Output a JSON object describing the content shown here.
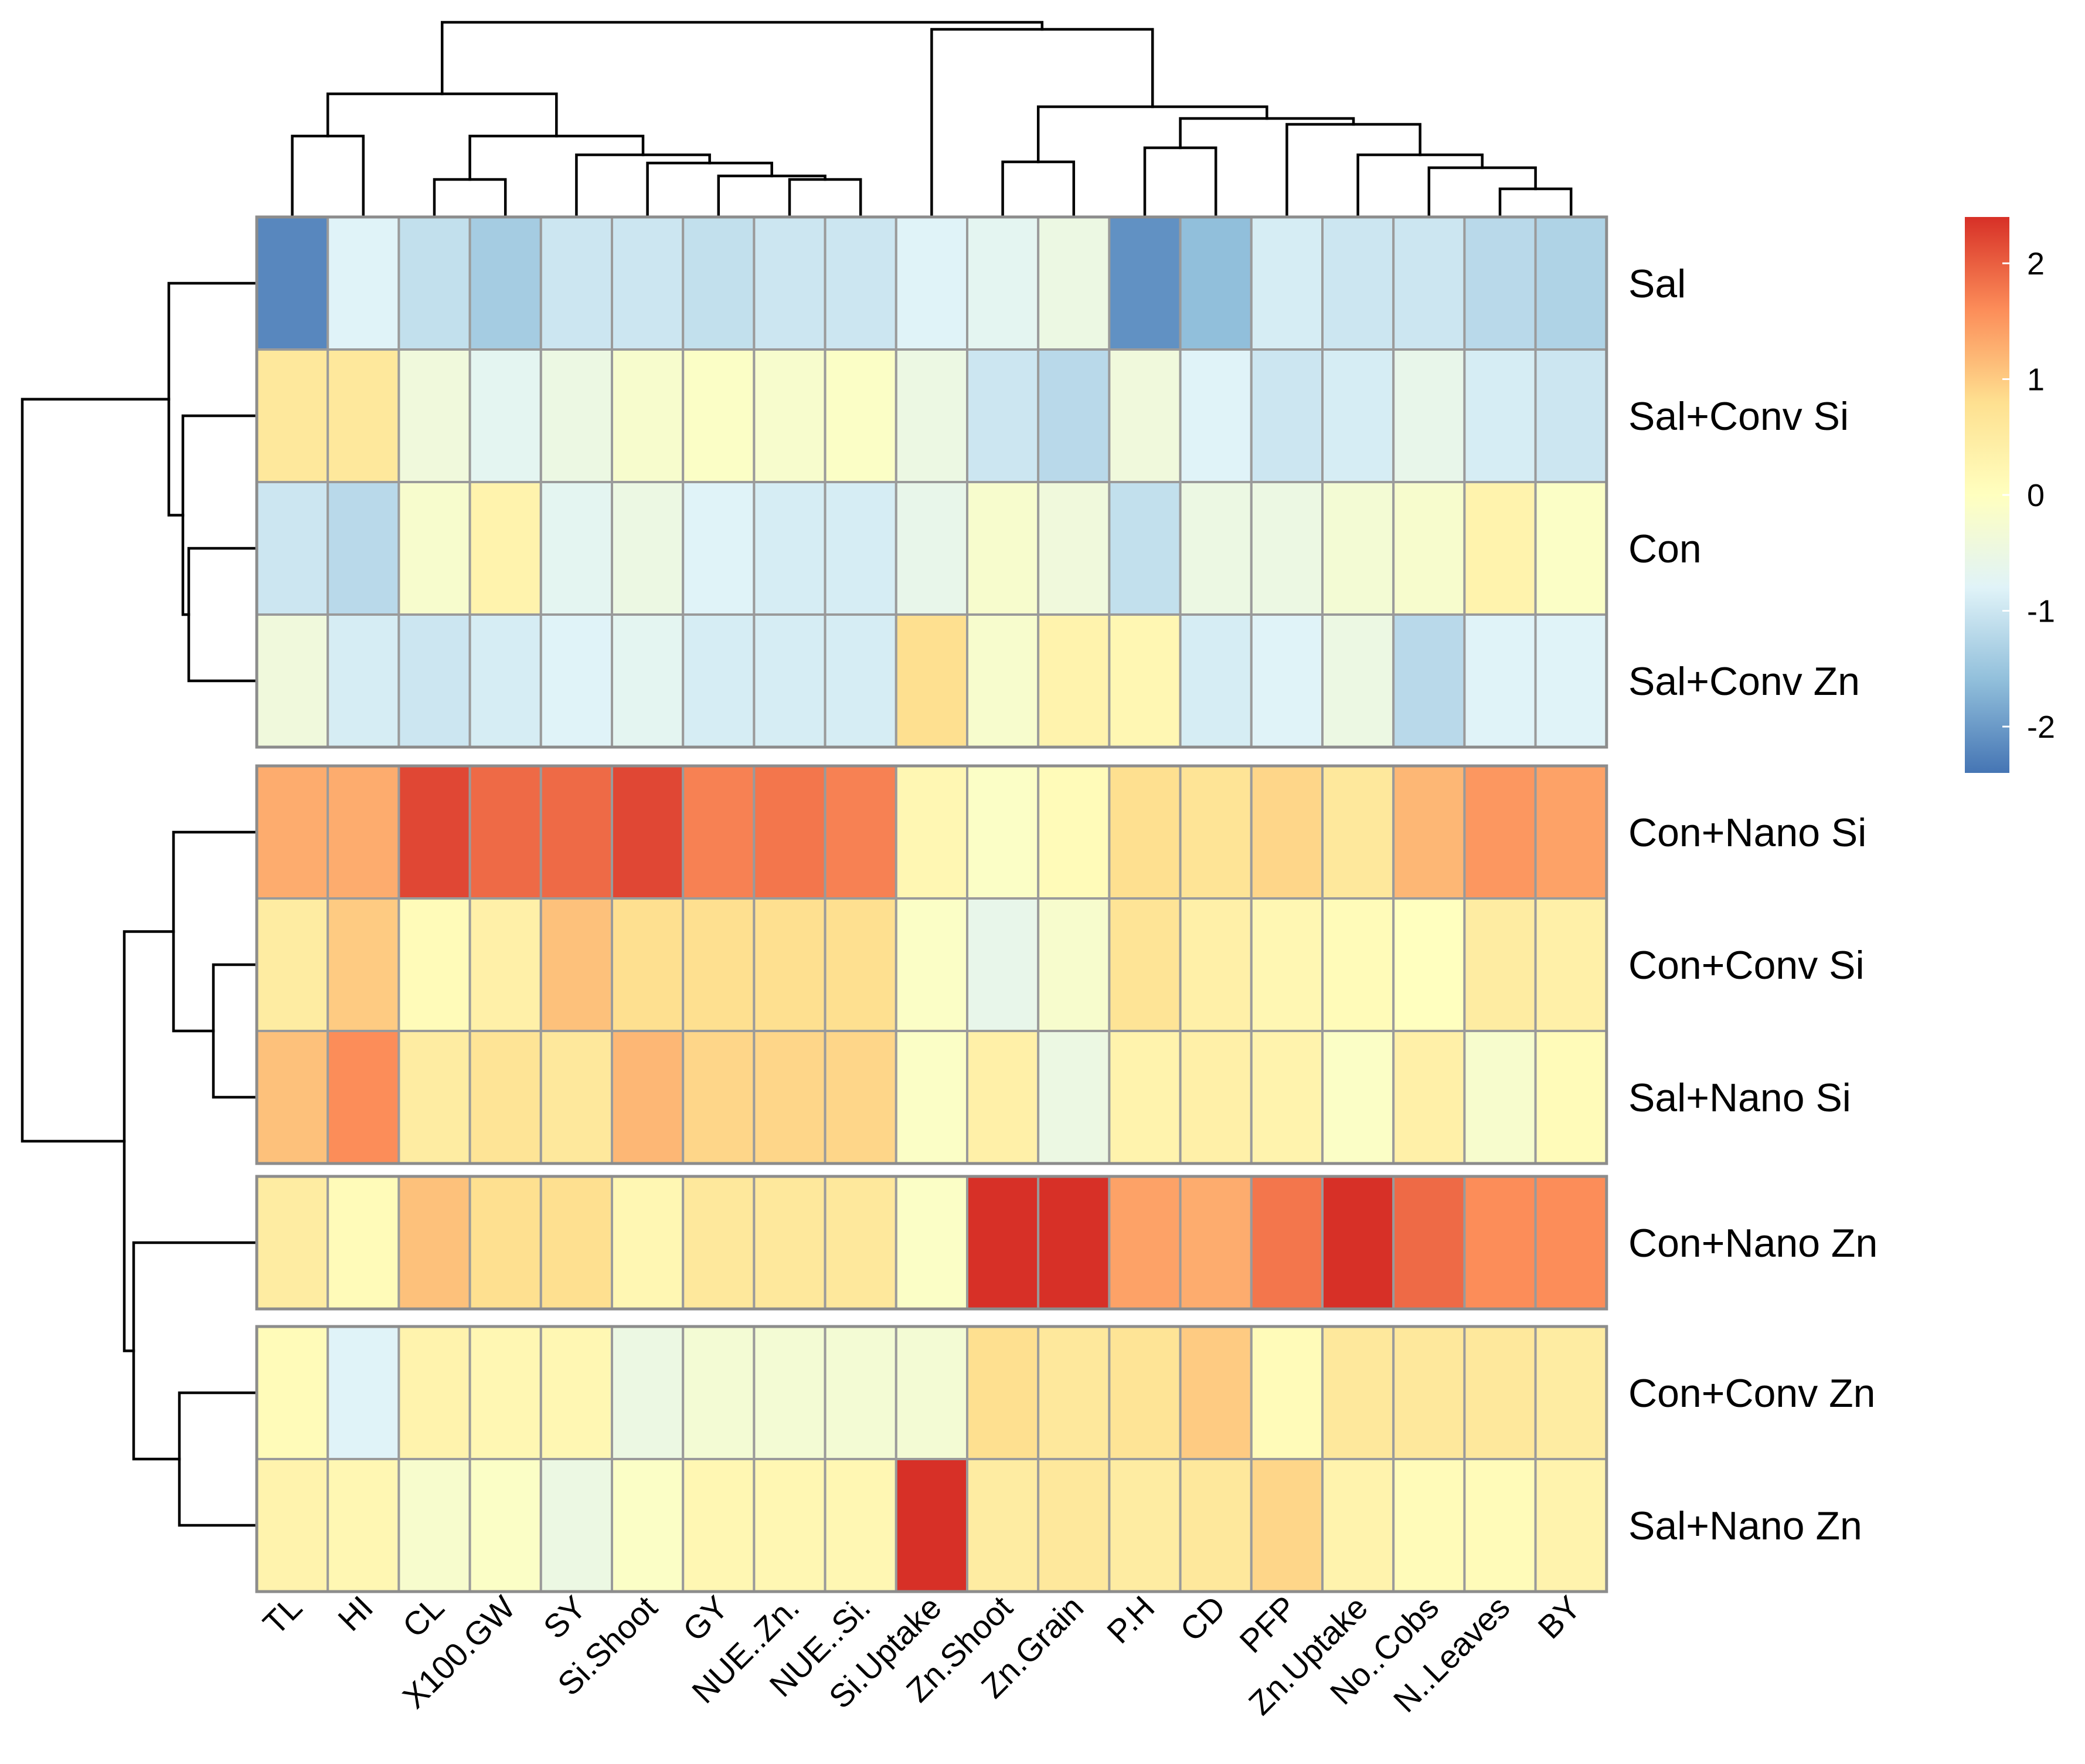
{
  "chart_data": {
    "type": "heatmap",
    "title": "",
    "columns": [
      "TL",
      "HI",
      "CL",
      "X100.GW",
      "SY",
      "Si.Shoot",
      "GY",
      "NUE..Zn.",
      "NUE..Si.",
      "Si.Uptake",
      "Zn.Shoot",
      "Zn.Grain",
      "P.H",
      "CD",
      "PFP",
      "Zn.Uptake",
      "No..Cobs",
      "N..Leaves",
      "BY"
    ],
    "rows": [
      "Sal",
      "Sal+Conv Si",
      "Con",
      "Sal+Conv Zn",
      "Con+Nano Si",
      "Con+Conv Si",
      "Sal+Nano Si",
      "Con+Nano Zn",
      "Con+Conv Zn",
      "Sal+Nano Zn"
    ],
    "row_groups": [
      [
        0,
        1,
        2,
        3
      ],
      [
        4,
        5,
        6
      ],
      [
        7
      ],
      [
        8,
        9
      ]
    ],
    "values": [
      [
        -2.2,
        -0.8,
        -1.1,
        -1.4,
        -1.0,
        -1.0,
        -1.1,
        -1.0,
        -1.0,
        -0.8,
        -0.7,
        -0.5,
        -2.1,
        -1.6,
        -0.9,
        -1.0,
        -1.0,
        -1.2,
        -1.3
      ],
      [
        0.6,
        0.6,
        -0.4,
        -0.7,
        -0.5,
        -0.2,
        -0.1,
        -0.2,
        -0.1,
        -0.5,
        -1.0,
        -1.2,
        -0.4,
        -0.8,
        -1.0,
        -0.9,
        -0.6,
        -0.9,
        -1.0
      ],
      [
        -1.0,
        -1.2,
        -0.2,
        0.3,
        -0.7,
        -0.5,
        -0.8,
        -0.9,
        -0.9,
        -0.6,
        -0.2,
        -0.4,
        -1.1,
        -0.5,
        -0.5,
        -0.3,
        -0.2,
        0.3,
        -0.1
      ],
      [
        -0.4,
        -0.9,
        -1.0,
        -0.9,
        -0.8,
        -0.7,
        -0.9,
        -0.9,
        -0.9,
        0.8,
        -0.2,
        0.3,
        0.2,
        -0.9,
        -0.8,
        -0.5,
        -1.2,
        -0.8,
        -0.8
      ],
      [
        1.3,
        1.3,
        2.2,
        1.9,
        1.9,
        2.2,
        1.7,
        1.8,
        1.7,
        0.2,
        -0.1,
        0.1,
        0.8,
        0.7,
        0.9,
        0.6,
        1.2,
        1.5,
        1.4
      ],
      [
        0.5,
        1.0,
        0.1,
        0.4,
        1.1,
        0.8,
        0.8,
        0.8,
        0.8,
        -0.1,
        -0.6,
        -0.2,
        0.7,
        0.4,
        0.2,
        0.1,
        0.0,
        0.5,
        0.4
      ],
      [
        1.1,
        1.6,
        0.5,
        0.7,
        0.6,
        1.2,
        0.9,
        0.9,
        0.9,
        -0.1,
        0.4,
        -0.5,
        0.3,
        0.4,
        0.3,
        -0.1,
        0.4,
        -0.2,
        0.1
      ],
      [
        0.5,
        0.1,
        1.1,
        0.8,
        0.8,
        0.2,
        0.6,
        0.6,
        0.6,
        -0.1,
        2.4,
        2.4,
        1.4,
        1.3,
        1.8,
        2.4,
        1.9,
        1.6,
        1.6
      ],
      [
        0.1,
        -0.8,
        0.3,
        0.2,
        0.2,
        -0.5,
        -0.3,
        -0.3,
        -0.3,
        -0.3,
        0.8,
        0.6,
        0.7,
        1.0,
        0.1,
        0.6,
        0.6,
        0.6,
        0.5
      ],
      [
        0.3,
        0.2,
        -0.2,
        -0.1,
        -0.5,
        -0.1,
        0.2,
        0.2,
        0.2,
        2.4,
        0.5,
        0.6,
        0.5,
        0.6,
        0.9,
        0.3,
        0.1,
        0.1,
        0.3
      ]
    ],
    "legend": {
      "ticks": [
        2,
        1,
        0,
        -1,
        -2
      ],
      "tick_labels": [
        "2",
        "1",
        "0",
        "-1",
        "-2"
      ],
      "min": -2.4,
      "max": 2.4,
      "colors": [
        "#4575b4",
        "#91bfdb",
        "#e0f3f8",
        "#ffffbf",
        "#fee090",
        "#fc8d59",
        "#d73027"
      ]
    },
    "grid": true,
    "legend_position": "right"
  }
}
